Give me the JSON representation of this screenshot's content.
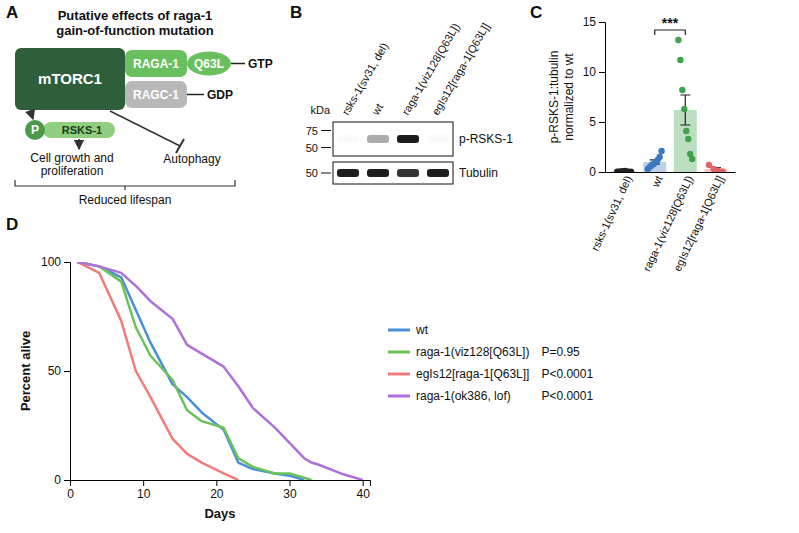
{
  "panel_labels": [
    "A",
    "B",
    "C",
    "D"
  ],
  "diagram": {
    "title": "Putative effects of raga-1 gain-of-function mutation",
    "complex": "mTORC1",
    "raga": {
      "label": "RAGA-1",
      "mutation": "Q63L",
      "nucleotide": "GTP"
    },
    "ragc": {
      "label": "RAGC-1",
      "nucleotide": "GDP"
    },
    "phospho": "P",
    "substrate": "RSKS-1",
    "outputs": [
      "Cell growth and proliferation",
      "Autophagy"
    ],
    "outcome": "Reduced lifespan"
  },
  "blot": {
    "unit": "kDa",
    "lanes": [
      "rsks-1(sv31, del)",
      "wt",
      "raga-1(viz128[Q63L])",
      "egIs12[raga-1[Q63L]]"
    ],
    "rows": [
      {
        "label": "p-RSKS-1",
        "markers": [
          75,
          50
        ],
        "intensities": [
          0.02,
          0.35,
          0.95,
          0.02
        ]
      },
      {
        "label": "Tubulin",
        "markers": [
          50
        ],
        "intensities": [
          0.95,
          0.95,
          0.85,
          0.95
        ]
      }
    ]
  },
  "chart_data": [
    {
      "type": "bar",
      "categories": [
        "rsks-1(sv31, del)",
        "wt",
        "raga-1(viz128[Q63L])",
        "egIs12[raga-1[Q63L]]"
      ],
      "values": [
        0.05,
        1.0,
        6.2,
        0.3
      ],
      "errors": [
        0.02,
        0.22,
        1.5,
        0.15
      ],
      "points": [
        [
          0.02,
          0.05,
          0.08,
          0.1,
          0.03,
          0.04
        ],
        [
          0.3,
          0.5,
          0.7,
          0.8,
          1.0,
          1.2,
          1.5,
          2.1
        ],
        [
          13.2,
          11.2,
          8.2,
          6.3,
          4.1,
          3.3,
          1.8,
          1.3
        ],
        [
          0.7,
          0.3,
          0.12,
          0.05
        ]
      ],
      "colors": [
        "#222222",
        "#3a78c2",
        "#3fa34d",
        "#e06666"
      ],
      "ylabel": "p-RSKS-1:tubulin normalized to wt",
      "ylim": [
        0,
        15
      ],
      "yticks": [
        0,
        5,
        10,
        15
      ],
      "annotations": [
        {
          "text": "***",
          "between": [
            "wt",
            "raga-1(viz128[Q63L])"
          ]
        }
      ]
    },
    {
      "type": "line",
      "x": [
        1,
        4,
        7,
        9,
        11,
        14,
        16,
        18,
        21,
        23,
        25,
        28,
        30,
        32,
        33,
        34,
        37,
        40
      ],
      "series": [
        {
          "name": "wt",
          "color": "#4a90d9",
          "values": [
            100,
            98,
            93,
            78,
            63,
            44,
            38,
            31,
            23,
            8,
            5,
            3,
            2,
            0,
            null,
            null,
            null,
            null
          ]
        },
        {
          "name": "raga-1(viz128[Q63L])",
          "color": "#6cc25a",
          "p_value": "P=0.95",
          "values": [
            100,
            98,
            91,
            70,
            57,
            46,
            32,
            27,
            24,
            10,
            6,
            3,
            3,
            1,
            0,
            null,
            null,
            null
          ]
        },
        {
          "name": "egIs12[raga-1[Q63L]]",
          "color": "#f27c7c",
          "p_value": "P<0.0001",
          "values": [
            100,
            95,
            73,
            50,
            38,
            19,
            12,
            8,
            3,
            0,
            null,
            null,
            null,
            null,
            null,
            null,
            null,
            null
          ]
        },
        {
          "name": "raga-1(ok386, lof)",
          "color": "#b070dc",
          "p_value": "P<0.0001",
          "values": [
            100,
            98,
            95,
            89,
            82,
            74,
            62,
            58,
            52,
            43,
            33,
            24,
            17,
            10,
            8,
            7,
            3,
            0
          ]
        }
      ],
      "xlabel": "Days",
      "ylabel": "Percent alive",
      "xlim": [
        0,
        41
      ],
      "xticks": [
        0,
        10,
        20,
        30,
        40
      ],
      "ylim": [
        0,
        100
      ],
      "yticks": [
        0,
        50,
        100
      ],
      "legend": "right"
    }
  ]
}
